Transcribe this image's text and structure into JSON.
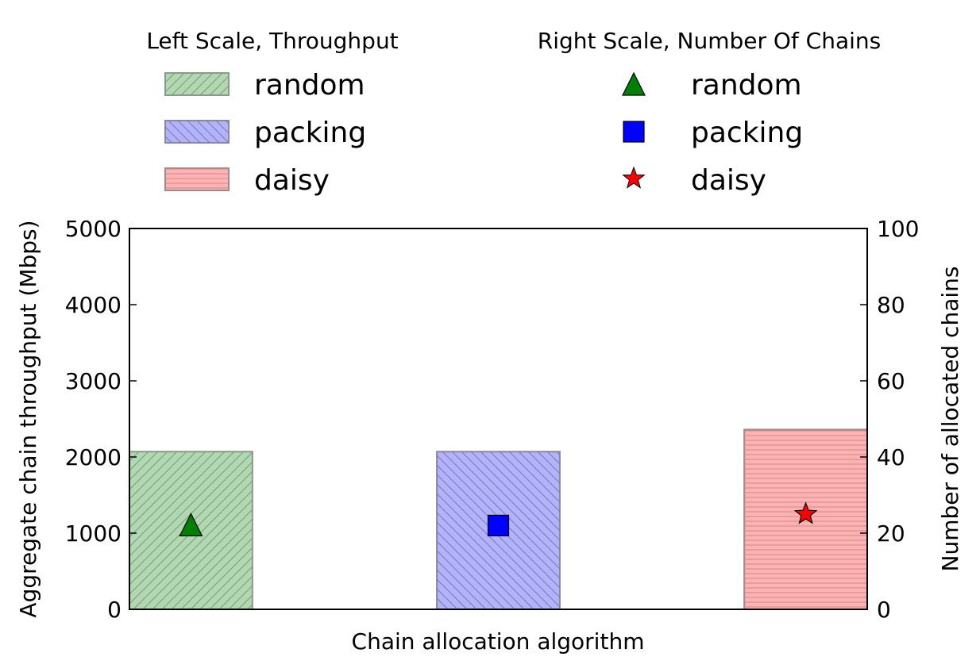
{
  "chart_data": {
    "type": "bar",
    "xlabel": "Chain allocation algorithm",
    "ylabel": "Aggregate chain throughput (Mbps)",
    "y2label": "Number of allocated chains",
    "ylim": [
      0,
      5000
    ],
    "y2lim": [
      0,
      100
    ],
    "yticks": [
      "0",
      "1000",
      "2000",
      "3000",
      "4000",
      "5000"
    ],
    "y2ticks": [
      "0",
      "20",
      "40",
      "60",
      "80",
      "100"
    ],
    "categories": [
      "random",
      "packing",
      "daisy"
    ],
    "series": [
      {
        "name": "random",
        "axis": "left",
        "kind": "bar",
        "value": 2070,
        "color": "#b2d8b2",
        "edge": "#8a9a8a",
        "hatch": "diagonal-up"
      },
      {
        "name": "packing",
        "axis": "left",
        "kind": "bar",
        "value": 2070,
        "color": "#b2b2ff",
        "edge": "#8a8a9a",
        "hatch": "diagonal-down"
      },
      {
        "name": "daisy",
        "axis": "left",
        "kind": "bar",
        "value": 2360,
        "color": "#ffb2b2",
        "edge": "#9a8a8a",
        "hatch": "horizontal"
      }
    ],
    "markers": [
      {
        "name": "random",
        "axis": "right",
        "value": 22,
        "marker": "triangle",
        "color": "#008000"
      },
      {
        "name": "packing",
        "axis": "right",
        "value": 22,
        "marker": "square",
        "color": "#0000ff"
      },
      {
        "name": "daisy",
        "axis": "right",
        "value": 25,
        "marker": "star",
        "color": "#ff0000"
      }
    ],
    "legend": {
      "placement": "top",
      "left_title": "Left Scale, Throughput",
      "right_title": "Right Scale, Number Of Chains",
      "left_entries": [
        "random",
        "packing",
        "daisy"
      ],
      "right_entries": [
        "random",
        "packing",
        "daisy"
      ]
    },
    "grid": false
  }
}
